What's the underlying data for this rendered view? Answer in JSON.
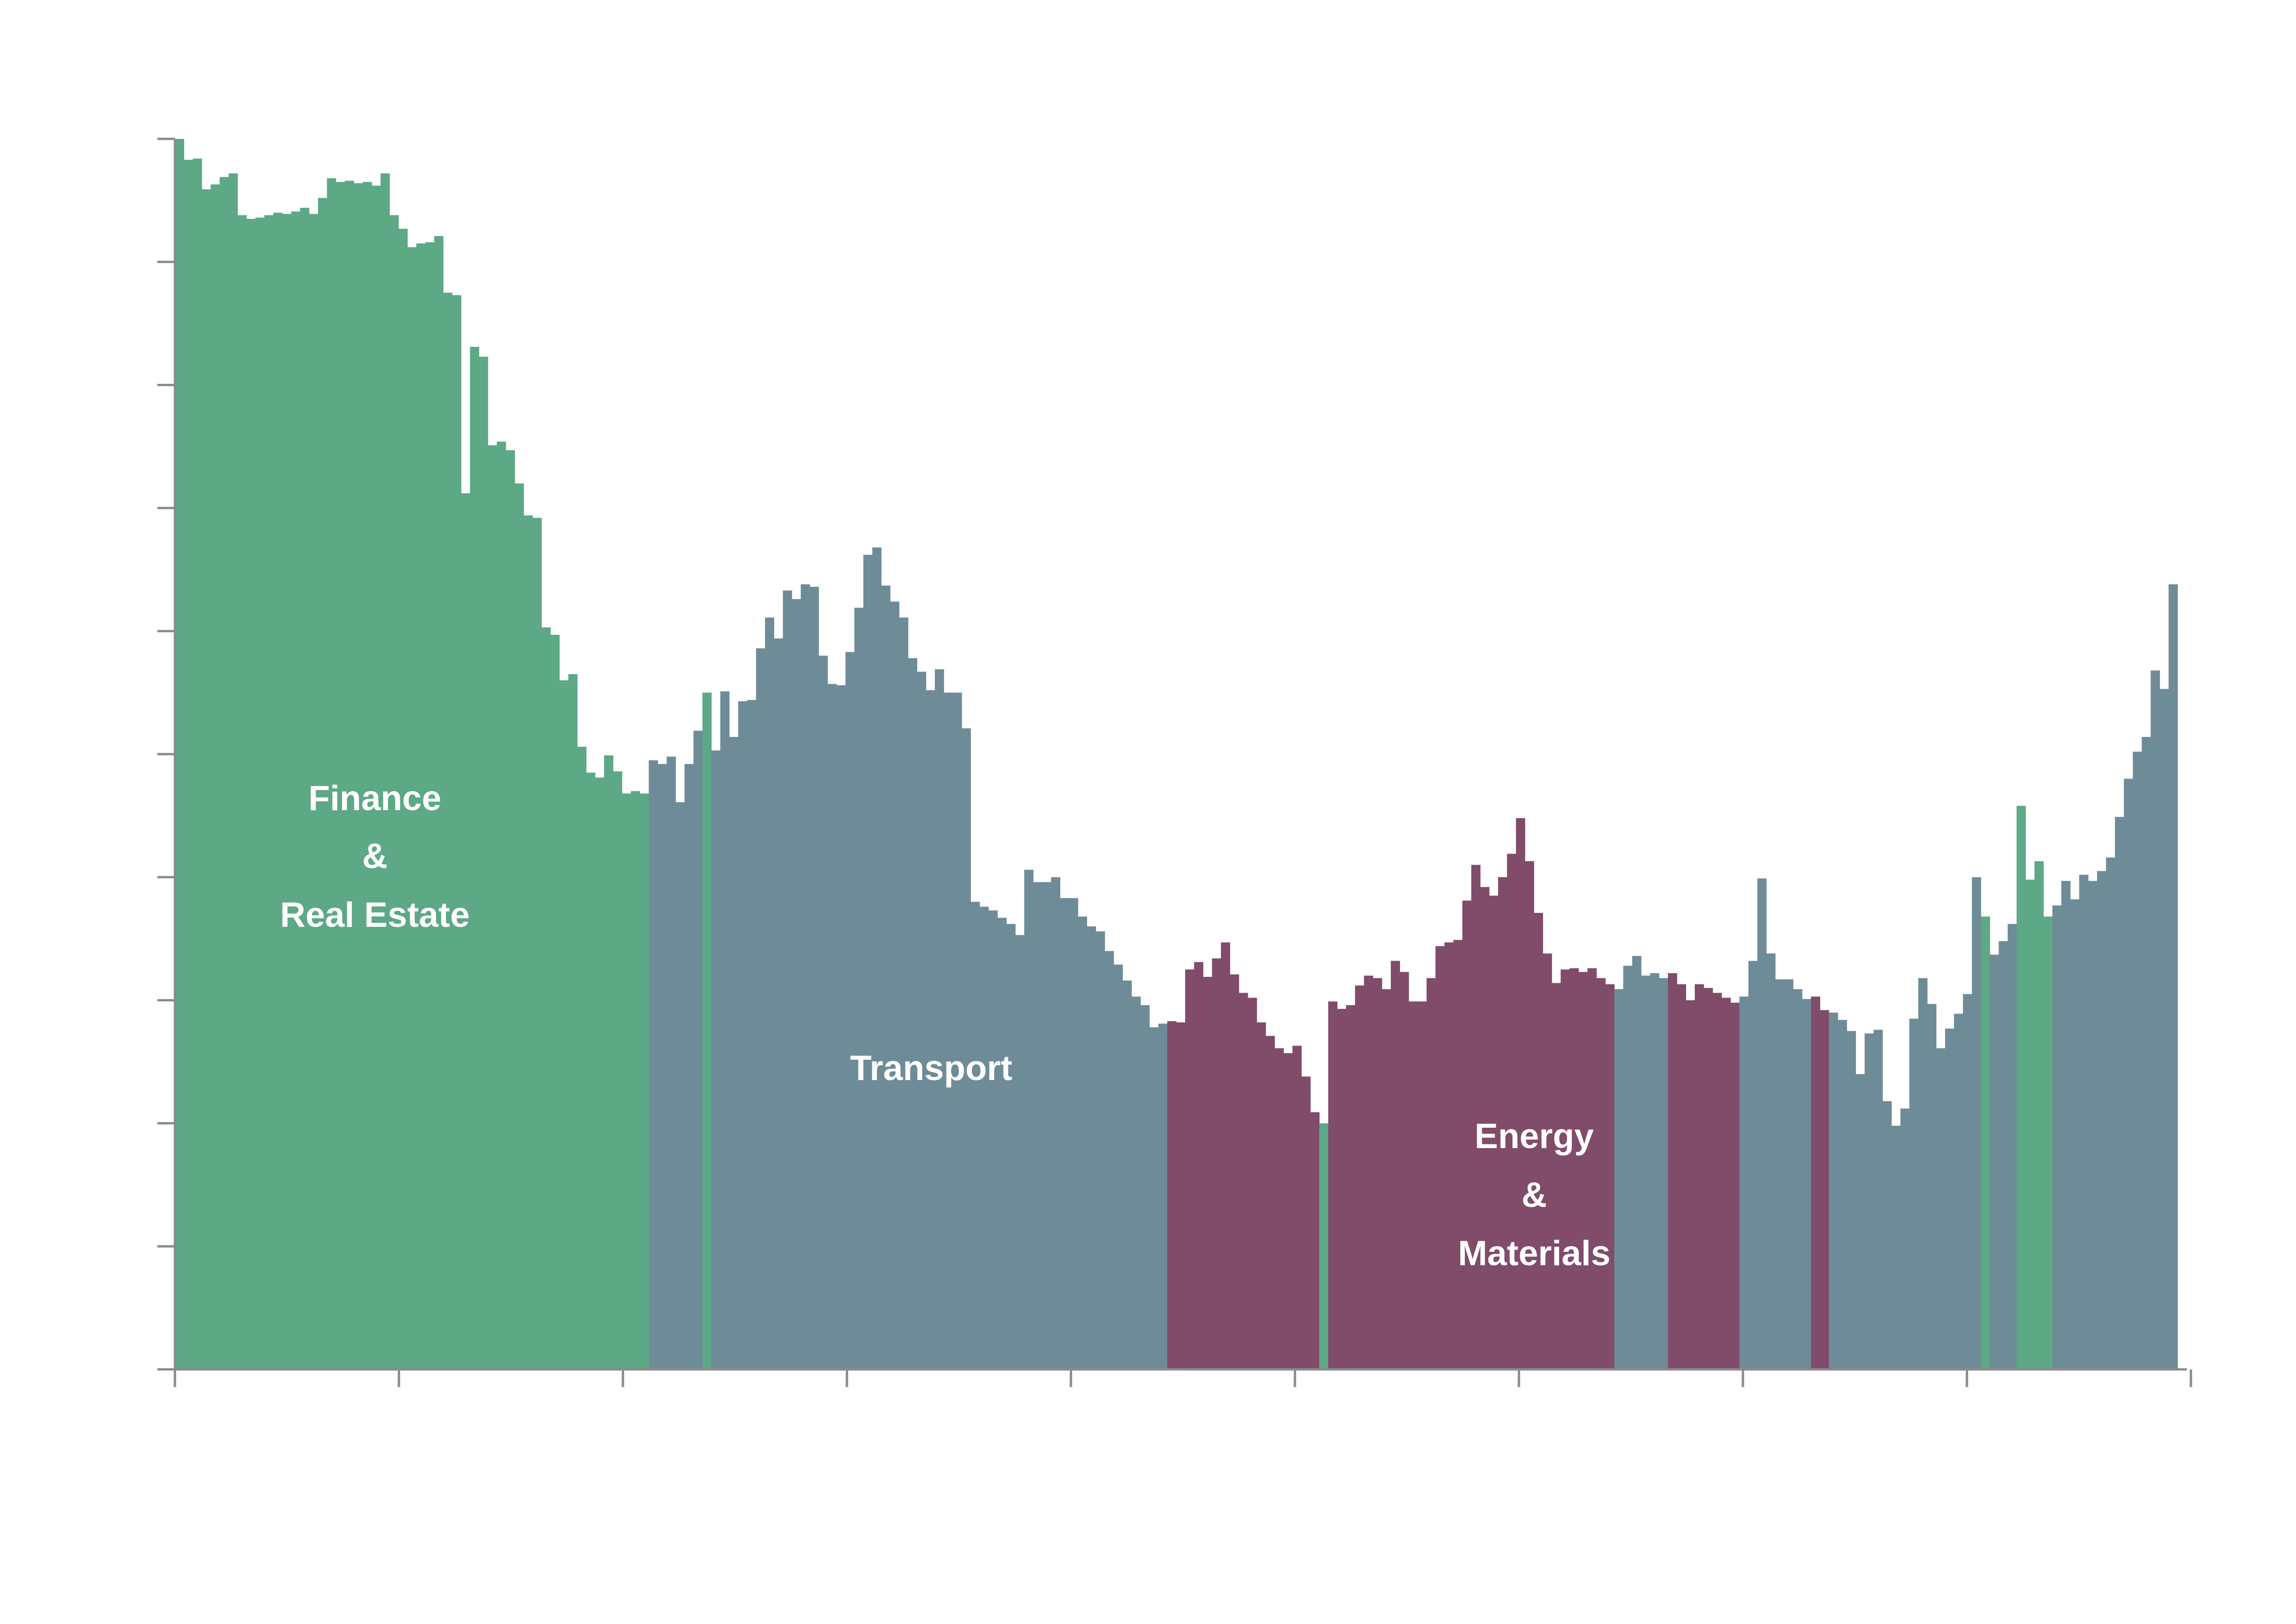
{
  "chart_data": {
    "type": "bar",
    "title": "",
    "xlabel": "",
    "ylabel": "",
    "x_ticks": 10,
    "y_ticks": 10,
    "ylim": [
      0,
      100
    ],
    "grid": false,
    "legend": "none",
    "colors": {
      "finance": "#5da885",
      "transport": "#6e8c98",
      "energy": "#814b6a",
      "axis": "#8a8a8a"
    },
    "regions": [
      {
        "key": "finance",
        "lines": [
          "Finance",
          "&",
          "Real Estate"
        ]
      },
      {
        "key": "transport",
        "lines": [
          "Transport"
        ]
      },
      {
        "key": "energy",
        "lines": [
          "Energy",
          "&",
          "Materials"
        ]
      }
    ],
    "values": [
      100,
      98.3,
      98.4,
      95.9,
      96.3,
      96.9,
      97.2,
      93.8,
      93.5,
      93.6,
      93.8,
      94.0,
      93.9,
      94.1,
      94.4,
      93.9,
      95.2,
      96.8,
      96.5,
      96.6,
      96.4,
      96.5,
      96.2,
      97.2,
      93.8,
      92.7,
      91.2,
      91.5,
      91.6,
      92.1,
      87.5,
      87.3,
      71.2,
      83.1,
      82.3,
      75.1,
      75.4,
      74.7,
      72.0,
      69.4,
      69.2,
      60.3,
      59.7,
      56.0,
      56.5,
      50.6,
      48.5,
      48.1,
      49.9,
      48.6,
      46.8,
      47.0,
      46.8,
      49.5,
      49.2,
      49.8,
      46.1,
      49.2,
      51.9,
      55.0,
      50.3,
      55.1,
      51.4,
      54.3,
      54.4,
      58.6,
      61.1,
      59.4,
      63.3,
      62.6,
      63.8,
      63.6,
      58.0,
      55.7,
      55.6,
      58.3,
      61.9,
      66.2,
      66.8,
      63.7,
      62.4,
      61.1,
      57.8,
      56.7,
      55.2,
      56.9,
      55.0,
      55.0,
      52.1,
      38.0,
      37.6,
      37.3,
      36.7,
      36.2,
      35.3,
      40.6,
      39.6,
      39.6,
      40.0,
      38.3,
      38.3,
      36.8,
      36.0,
      35.6,
      34.0,
      32.9,
      31.6,
      30.3,
      29.6,
      27.8,
      28.1,
      28.3,
      28.2,
      32.5,
      33.1,
      31.9,
      33.4,
      34.7,
      32.1,
      30.6,
      30.2,
      28.2,
      27.1,
      26.1,
      25.7,
      26.3,
      23.8,
      20.9,
      20.0,
      29.9,
      29.3,
      29.6,
      31.2,
      32.0,
      31.8,
      30.9,
      33.2,
      32.3,
      29.9,
      29.9,
      31.8,
      34.4,
      34.7,
      34.9,
      38.1,
      41.0,
      39.2,
      38.5,
      40.0,
      41.9,
      44.8,
      41.3,
      37.1,
      33.8,
      31.4,
      32.5,
      32.6,
      32.3,
      32.6,
      31.8,
      31.3,
      30.9,
      32.8,
      33.6,
      32.0,
      32.2,
      31.8,
      32.2,
      31.3,
      30.0,
      31.3,
      31.0,
      30.6,
      30.2,
      29.8,
      30.3,
      33.2,
      39.9,
      33.8,
      31.7,
      31.7,
      30.9,
      30.1,
      30.3,
      29.2,
      29.0,
      28.4,
      27.5,
      24.0,
      27.3,
      27.6,
      21.8,
      19.8,
      21.2,
      28.5,
      31.8,
      29.7,
      26.1,
      27.7,
      28.9,
      30.5,
      40.0,
      36.8,
      33.7,
      34.8,
      36.2,
      45.8,
      39.8,
      41.3,
      36.8,
      37.7,
      39.7,
      38.2,
      40.2,
      39.7,
      40.5,
      41.6,
      44.9,
      48.0,
      50.2,
      51.4,
      56.8,
      55.3,
      63.8
    ],
    "categories_per_bar": [
      "finance",
      "finance",
      "finance",
      "finance",
      "finance",
      "finance",
      "finance",
      "finance",
      "finance",
      "finance",
      "finance",
      "finance",
      "finance",
      "finance",
      "finance",
      "finance",
      "finance",
      "finance",
      "finance",
      "finance",
      "finance",
      "finance",
      "finance",
      "finance",
      "finance",
      "finance",
      "finance",
      "finance",
      "finance",
      "finance",
      "finance",
      "finance",
      "finance",
      "finance",
      "finance",
      "finance",
      "finance",
      "finance",
      "finance",
      "finance",
      "finance",
      "finance",
      "finance",
      "finance",
      "finance",
      "finance",
      "finance",
      "finance",
      "finance",
      "finance",
      "finance",
      "finance",
      "finance",
      "transport",
      "transport",
      "transport",
      "transport",
      "transport",
      "transport",
      "finance",
      "transport",
      "transport",
      "transport",
      "transport",
      "transport",
      "transport",
      "transport",
      "transport",
      "transport",
      "transport",
      "transport",
      "transport",
      "transport",
      "transport",
      "transport",
      "transport",
      "transport",
      "transport",
      "transport",
      "transport",
      "transport",
      "transport",
      "transport",
      "transport",
      "transport",
      "transport",
      "transport",
      "transport",
      "transport",
      "transport",
      "transport",
      "transport",
      "transport",
      "transport",
      "transport",
      "transport",
      "transport",
      "transport",
      "transport",
      "transport",
      "transport",
      "transport",
      "transport",
      "transport",
      "transport",
      "transport",
      "transport",
      "transport",
      "transport",
      "transport",
      "transport",
      "energy",
      "energy",
      "energy",
      "energy",
      "energy",
      "energy",
      "energy",
      "energy",
      "energy",
      "energy",
      "energy",
      "energy",
      "energy",
      "energy",
      "energy",
      "energy",
      "energy",
      "finance",
      "energy",
      "energy",
      "energy",
      "energy",
      "energy",
      "energy",
      "energy",
      "energy",
      "energy",
      "energy",
      "energy",
      "energy",
      "energy",
      "energy",
      "energy",
      "energy",
      "energy",
      "energy",
      "energy",
      "energy",
      "energy",
      "energy",
      "energy",
      "energy",
      "energy",
      "energy",
      "energy",
      "energy",
      "energy",
      "energy",
      "energy",
      "energy",
      "transport",
      "transport",
      "transport",
      "transport",
      "transport",
      "transport",
      "energy",
      "energy",
      "energy",
      "energy",
      "energy",
      "energy",
      "energy",
      "energy",
      "transport",
      "transport",
      "transport",
      "transport",
      "transport",
      "transport",
      "transport",
      "transport",
      "energy",
      "energy",
      "transport",
      "transport",
      "transport",
      "transport",
      "transport",
      "transport",
      "transport",
      "transport",
      "transport",
      "transport",
      "transport",
      "transport",
      "transport",
      "transport",
      "transport",
      "transport",
      "transport",
      "finance",
      "transport",
      "transport",
      "transport",
      "finance",
      "finance",
      "finance",
      "finance",
      "transport",
      "transport",
      "transport",
      "transport",
      "transport",
      "transport",
      "transport",
      "transport",
      "transport",
      "transport",
      "transport",
      "transport",
      "transport",
      "transport"
    ]
  }
}
